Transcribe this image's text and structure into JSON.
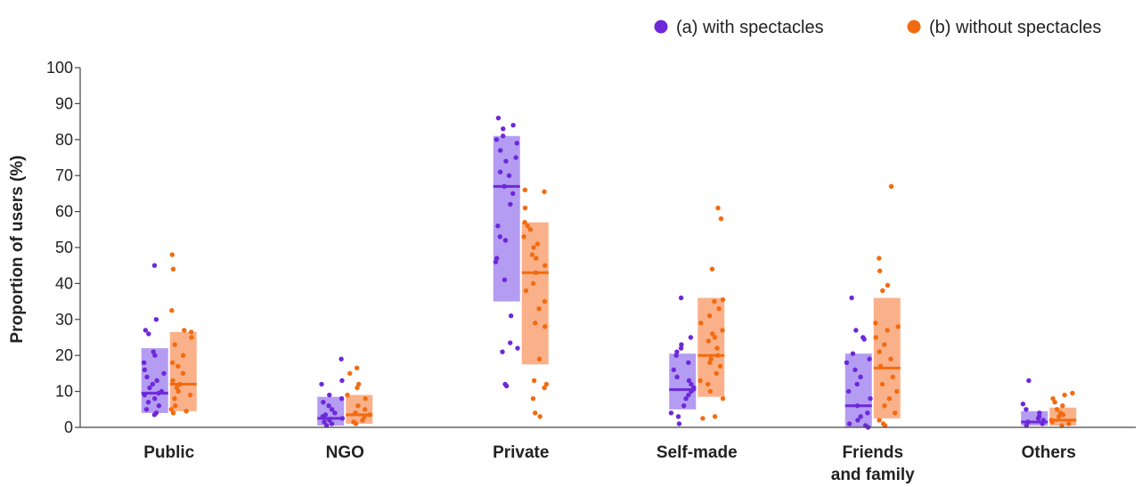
{
  "chart_data": {
    "type": "scatter",
    "title": "",
    "xlabel": "",
    "ylabel": "Proportion of users (%)",
    "ylim": [
      0,
      100
    ],
    "yticks": [
      0,
      10,
      20,
      30,
      40,
      50,
      60,
      70,
      80,
      90,
      100
    ],
    "grid": false,
    "legend_position": "top-right",
    "categories": [
      [
        "Public"
      ],
      [
        "NGO"
      ],
      [
        "Private"
      ],
      [
        "Self-made"
      ],
      [
        "Friends",
        "and family"
      ],
      [
        "Others"
      ]
    ],
    "series": [
      {
        "name": "(a) with spectacles",
        "color": "#6d28d9",
        "band_color": "#b49cf2",
        "median": [
          9.5,
          2.5,
          67,
          10.5,
          6,
          1.5
        ],
        "iqr": [
          [
            4,
            22
          ],
          [
            0.5,
            8.5
          ],
          [
            35,
            81
          ],
          [
            5,
            20.5
          ],
          [
            0,
            20.5
          ],
          [
            0.5,
            4.5
          ]
        ],
        "points": [
          [
            45,
            30,
            27,
            26,
            21,
            20,
            16,
            15,
            13,
            12,
            11,
            10,
            9.5,
            9,
            8,
            7,
            6,
            5,
            4,
            3.5,
            14,
            18
          ],
          [
            19,
            13,
            12,
            9,
            8,
            7,
            6,
            5,
            4,
            3.5,
            3,
            2.5,
            2,
            1.5,
            1,
            0.5
          ],
          [
            86,
            84,
            83,
            81,
            80,
            79,
            77,
            75,
            74,
            71,
            70,
            67,
            65,
            62,
            56,
            53,
            52,
            47,
            46,
            41,
            31,
            23.5,
            22,
            21,
            12,
            11.5
          ],
          [
            36,
            25,
            23,
            22,
            21,
            20,
            18,
            16,
            14,
            13,
            12,
            11,
            10.5,
            10,
            9,
            8,
            6,
            4,
            3,
            1
          ],
          [
            36,
            27,
            25,
            24.5,
            20.5,
            19,
            18,
            16,
            14,
            12,
            10,
            8,
            6,
            4,
            3,
            2,
            1,
            0.5,
            0
          ],
          [
            13,
            6.5,
            5,
            4,
            3,
            2.5,
            2,
            1.5,
            1,
            0.5
          ]
        ]
      },
      {
        "name": "(b) without spectacles",
        "color": "#f26b10",
        "band_color": "#fab18a",
        "median": [
          12,
          3.5,
          43,
          20,
          16.5,
          2
        ],
        "iqr": [
          [
            4.5,
            26.5
          ],
          [
            1,
            9
          ],
          [
            17.5,
            57
          ],
          [
            8.5,
            36
          ],
          [
            2.5,
            36
          ],
          [
            0.5,
            5.5
          ]
        ],
        "points": [
          [
            48,
            44,
            32.5,
            27,
            26.5,
            25,
            23,
            20,
            18,
            17,
            15,
            13,
            12,
            11,
            10,
            9,
            8,
            6,
            5,
            4.5,
            4
          ],
          [
            16.5,
            15,
            12,
            11,
            9,
            8,
            6,
            5,
            4,
            3.5,
            3,
            2,
            1.5,
            1
          ],
          [
            66,
            65.5,
            61,
            57,
            56,
            55,
            53,
            51,
            50,
            48,
            47,
            45,
            43,
            40,
            38,
            35,
            33,
            29,
            28,
            19,
            13,
            12,
            11,
            8,
            4,
            3
          ],
          [
            61,
            58,
            44,
            35.5,
            35,
            33,
            31,
            29,
            27,
            26,
            25,
            24,
            22,
            20,
            19,
            18,
            17,
            15,
            13,
            12,
            10,
            8,
            3,
            2.5
          ],
          [
            67,
            47,
            43.5,
            39.5,
            38,
            29,
            28,
            27,
            25,
            23,
            21,
            19,
            17,
            14,
            12,
            10,
            8,
            6,
            4,
            2,
            1,
            0.5
          ],
          [
            9.5,
            9,
            8,
            7,
            6,
            5,
            4,
            3.5,
            3,
            2,
            1.5,
            1,
            0.5
          ]
        ]
      }
    ]
  }
}
